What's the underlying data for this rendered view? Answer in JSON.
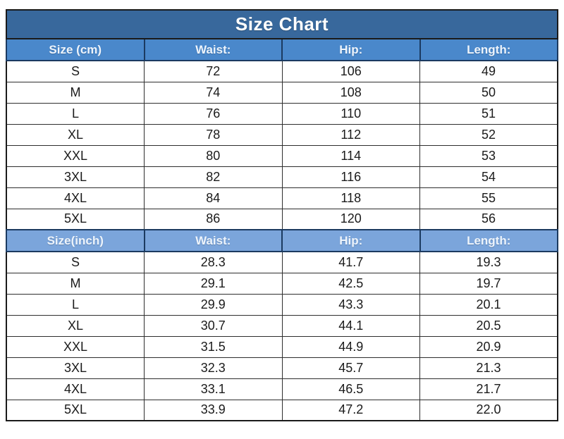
{
  "title": "Size Chart",
  "colors": {
    "title_bg": "#38689C",
    "header_cm_bg": "#4A88CB",
    "header_inch_bg": "#7BA5DB",
    "header_text": "#EDF4FC",
    "data_text": "#1B1B1B",
    "border": "#1A1A1A",
    "page_bg": "#FFFFFF"
  },
  "columns": [
    "size",
    "waist",
    "hip",
    "length"
  ],
  "sections": [
    {
      "id": "cm",
      "header": [
        "Size (cm)",
        "Waist:",
        "Hip:",
        "Length:"
      ],
      "rows": [
        [
          "S",
          "72",
          "106",
          "49"
        ],
        [
          "M",
          "74",
          "108",
          "50"
        ],
        [
          "L",
          "76",
          "110",
          "51"
        ],
        [
          "XL",
          "78",
          "112",
          "52"
        ],
        [
          "XXL",
          "80",
          "114",
          "53"
        ],
        [
          "3XL",
          "82",
          "116",
          "54"
        ],
        [
          "4XL",
          "84",
          "118",
          "55"
        ],
        [
          "5XL",
          "86",
          "120",
          "56"
        ]
      ]
    },
    {
      "id": "inch",
      "header": [
        "Size(inch)",
        "Waist:",
        "Hip:",
        "Length:"
      ],
      "rows": [
        [
          "S",
          "28.3",
          "41.7",
          "19.3"
        ],
        [
          "M",
          "29.1",
          "42.5",
          "19.7"
        ],
        [
          "L",
          "29.9",
          "43.3",
          "20.1"
        ],
        [
          "XL",
          "30.7",
          "44.1",
          "20.5"
        ],
        [
          "XXL",
          "31.5",
          "44.9",
          "20.9"
        ],
        [
          "3XL",
          "32.3",
          "45.7",
          "21.3"
        ],
        [
          "4XL",
          "33.1",
          "46.5",
          "21.7"
        ],
        [
          "5XL",
          "33.9",
          "47.2",
          "22.0"
        ]
      ]
    }
  ],
  "chart_data": {
    "type": "table",
    "title": "Size Chart",
    "tables": [
      {
        "columns": [
          "Size (cm)",
          "Waist:",
          "Hip:",
          "Length:"
        ],
        "rows": [
          [
            "S",
            72,
            106,
            49
          ],
          [
            "M",
            74,
            108,
            50
          ],
          [
            "L",
            76,
            110,
            51
          ],
          [
            "XL",
            78,
            112,
            52
          ],
          [
            "XXL",
            80,
            114,
            53
          ],
          [
            "3XL",
            82,
            116,
            54
          ],
          [
            "4XL",
            84,
            118,
            55
          ],
          [
            "5XL",
            86,
            120,
            56
          ]
        ]
      },
      {
        "columns": [
          "Size(inch)",
          "Waist:",
          "Hip:",
          "Length:"
        ],
        "rows": [
          [
            "S",
            28.3,
            41.7,
            19.3
          ],
          [
            "M",
            29.1,
            42.5,
            19.7
          ],
          [
            "L",
            29.9,
            43.3,
            20.1
          ],
          [
            "XL",
            30.7,
            44.1,
            20.5
          ],
          [
            "XXL",
            31.5,
            44.9,
            20.9
          ],
          [
            "3XL",
            32.3,
            45.7,
            21.3
          ],
          [
            "4XL",
            33.1,
            46.5,
            21.7
          ],
          [
            "5XL",
            33.9,
            47.2,
            22.0
          ]
        ]
      }
    ]
  }
}
